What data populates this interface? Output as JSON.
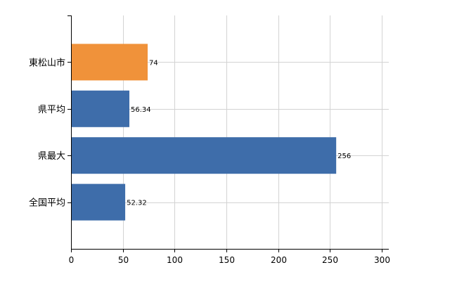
{
  "chart_data": {
    "type": "bar",
    "orientation": "horizontal",
    "categories": [
      "東松山市",
      "県平均",
      "県最大",
      "全国平均"
    ],
    "values": [
      74,
      56.34,
      256,
      52.32
    ],
    "value_labels": [
      "74",
      "56.34",
      "256",
      "52.32"
    ],
    "bar_colors": [
      "#F0923A",
      "#3E6DAA",
      "#3E6DAA",
      "#3E6DAA"
    ],
    "xlim": [
      0,
      300
    ],
    "xticks": [
      0,
      50,
      100,
      150,
      200,
      250,
      300
    ],
    "grid": true,
    "legend": "none",
    "title": "",
    "xlabel": "",
    "ylabel": ""
  }
}
